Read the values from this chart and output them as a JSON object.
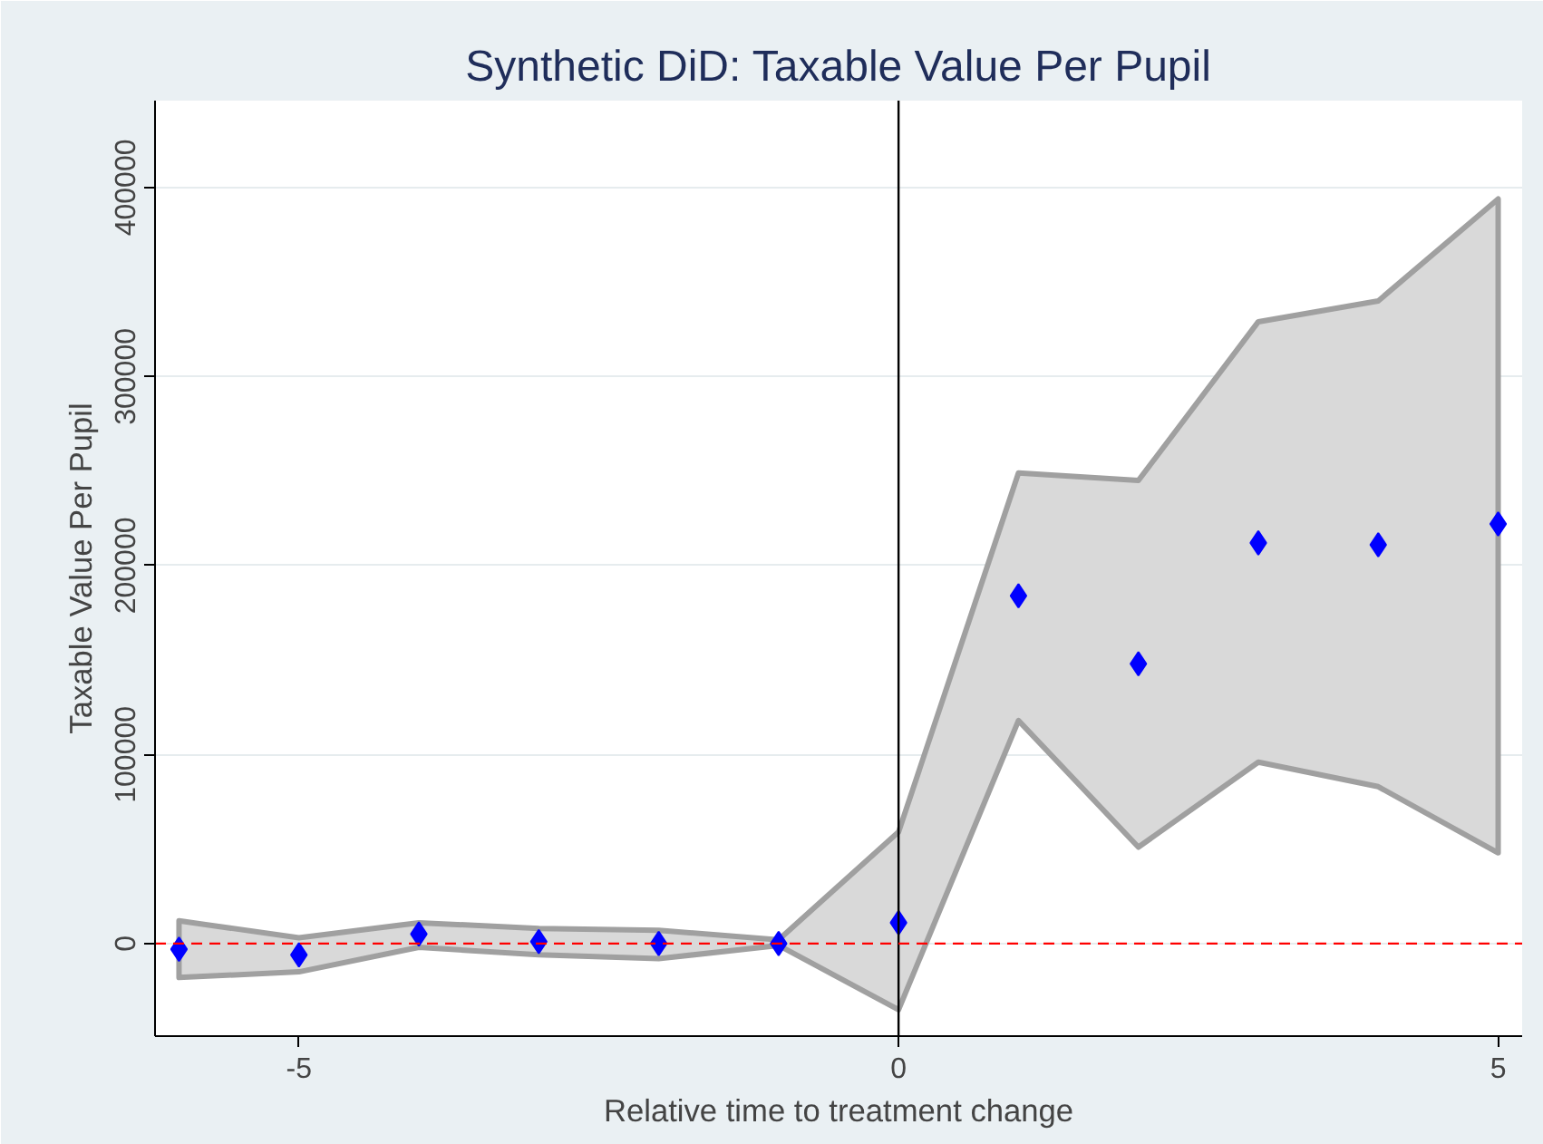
{
  "chart_data": {
    "type": "scatter",
    "title": "Synthetic DiD: Taxable Value Per Pupil",
    "xlabel": "Relative time to treatment change",
    "ylabel": "Taxable Value Per Pupil",
    "x": [
      -6,
      -5,
      -4,
      -3,
      -2,
      -1,
      0,
      1,
      2,
      3,
      4,
      5
    ],
    "series": [
      {
        "color": "#0000ff",
        "values": [
          -3000,
          -6000,
          5000,
          1000,
          0,
          0,
          11000,
          184000,
          148000,
          212000,
          211000,
          222000
        ],
        "lower": [
          -18000,
          -15000,
          -2000,
          -6000,
          -8000,
          -1000,
          -35000,
          118000,
          51000,
          96000,
          83000,
          48000
        ],
        "upper": [
          12000,
          3000,
          11000,
          8000,
          7000,
          2000,
          59000,
          249000,
          245000,
          329000,
          340000,
          394000
        ]
      }
    ],
    "xlim": [
      -6.2,
      5.2
    ],
    "xticks": [
      -5,
      0,
      5
    ],
    "ylim": [
      -49000,
      446000
    ],
    "yticks": [
      0,
      100000,
      200000,
      300000,
      400000
    ],
    "ref_lines": [
      {
        "axis": "x",
        "value": 0,
        "color": "#000000",
        "line_style": "solid"
      },
      {
        "axis": "y",
        "value": 0,
        "color": "#ff0000",
        "line_style": "dashed"
      }
    ],
    "grid": "y",
    "marker": "diamond"
  }
}
